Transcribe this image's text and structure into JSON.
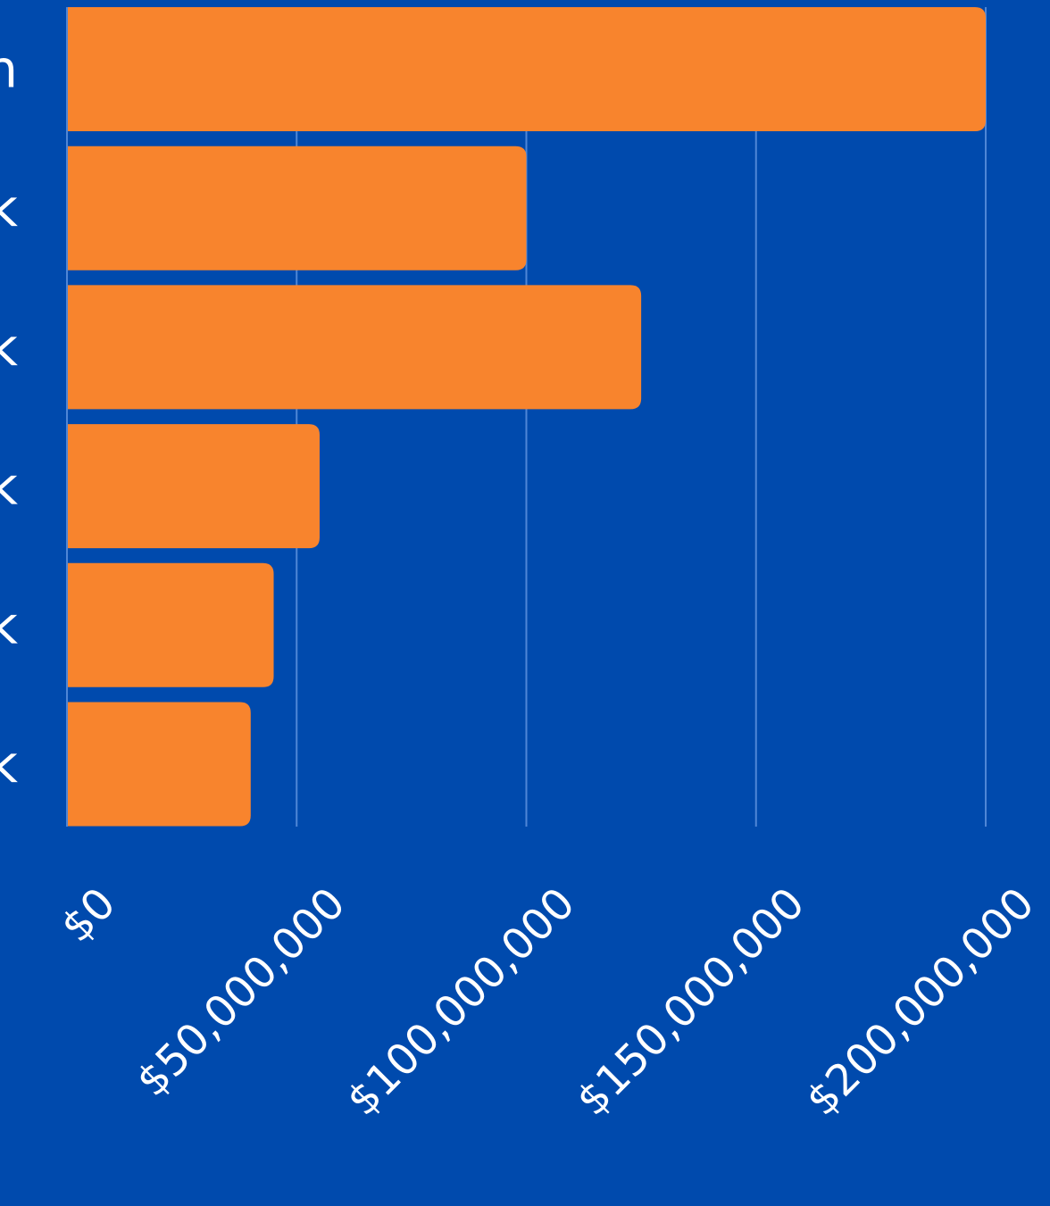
{
  "colors": {
    "background": "#004aad",
    "bar": "#f8842d",
    "grid": "#4f86d6",
    "text": "#ffffff"
  },
  "chart_data": {
    "type": "bar",
    "orientation": "horizontal",
    "categories": [
      "n",
      "k",
      "k",
      "k",
      "k",
      "k"
    ],
    "values": [
      200000000,
      100000000,
      125000000,
      55000000,
      45000000,
      40000000
    ],
    "xlim": [
      0,
      200000000
    ],
    "x_ticks": [
      0,
      50000000,
      100000000,
      150000000,
      200000000
    ],
    "x_tick_labels": [
      "$0",
      "$50,000,000",
      "$100,000,000",
      "$150,000,000",
      "$200,000,000"
    ],
    "grid": true,
    "title": "",
    "xlabel": "",
    "ylabel": ""
  }
}
